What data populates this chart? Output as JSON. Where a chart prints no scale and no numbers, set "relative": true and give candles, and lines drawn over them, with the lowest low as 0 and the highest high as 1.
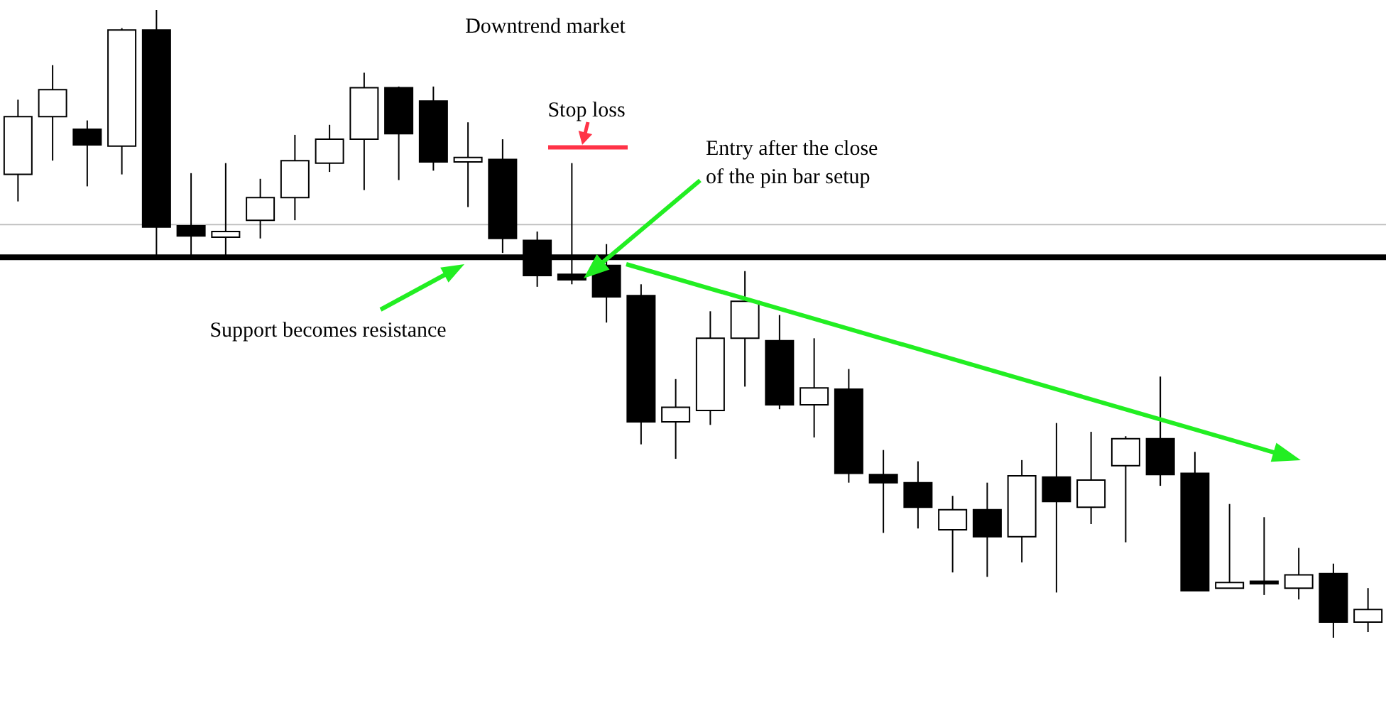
{
  "chart_data": {
    "type": "candlestick",
    "title": "Downtrend market",
    "relative": true,
    "categories": [
      null,
      null,
      null,
      null,
      null,
      null,
      null,
      null,
      null,
      null,
      null,
      null,
      null,
      null,
      null,
      null,
      null,
      null,
      null,
      null,
      null,
      null,
      null,
      null,
      null,
      null,
      null,
      null,
      null,
      null,
      null,
      null,
      null,
      null,
      null,
      null,
      null,
      null,
      null,
      null
    ],
    "ohlc": [
      [
        0.738,
        0.857,
        0.695,
        0.83
      ],
      [
        0.83,
        0.912,
        0.76,
        0.873
      ],
      [
        0.81,
        0.824,
        0.719,
        0.785
      ],
      [
        0.783,
        0.971,
        0.738,
        0.968
      ],
      [
        0.968,
        1.0,
        0.609,
        0.654
      ],
      [
        0.656,
        0.74,
        0.609,
        0.64
      ],
      [
        0.638,
        0.756,
        0.609,
        0.647
      ],
      [
        0.665,
        0.731,
        0.636,
        0.701
      ],
      [
        0.701,
        0.801,
        0.665,
        0.76
      ],
      [
        0.756,
        0.817,
        0.742,
        0.794
      ],
      [
        0.794,
        0.9,
        0.713,
        0.876
      ],
      [
        0.876,
        0.878,
        0.729,
        0.803
      ],
      [
        0.855,
        0.878,
        0.744,
        0.758
      ],
      [
        0.758,
        0.821,
        0.686,
        0.765
      ],
      [
        0.762,
        0.794,
        0.613,
        0.636
      ],
      [
        0.633,
        0.647,
        0.559,
        0.577
      ],
      [
        0.579,
        0.756,
        0.563,
        0.57
      ],
      [
        0.593,
        0.627,
        0.502,
        0.543
      ],
      [
        0.545,
        0.563,
        0.308,
        0.344
      ],
      [
        0.344,
        0.412,
        0.285,
        0.367
      ],
      [
        0.362,
        0.52,
        0.339,
        0.477
      ],
      [
        0.477,
        0.584,
        0.4,
        0.536
      ],
      [
        0.473,
        0.514,
        0.364,
        0.371
      ],
      [
        0.371,
        0.477,
        0.319,
        0.398
      ],
      [
        0.396,
        0.428,
        0.247,
        0.262
      ],
      [
        0.26,
        0.299,
        0.167,
        0.247
      ],
      [
        0.247,
        0.281,
        0.174,
        0.208
      ],
      [
        0.172,
        0.226,
        0.104,
        0.204
      ],
      [
        0.204,
        0.247,
        0.097,
        0.161
      ],
      [
        0.161,
        0.283,
        0.12,
        0.258
      ],
      [
        0.256,
        0.342,
        0.072,
        0.217
      ],
      [
        0.208,
        0.328,
        0.181,
        0.251
      ],
      [
        0.274,
        0.321,
        0.152,
        0.317
      ],
      [
        0.317,
        0.416,
        0.242,
        0.26
      ],
      [
        0.262,
        0.296,
        0.075,
        0.075
      ],
      [
        0.079,
        0.213,
        0.079,
        0.088
      ],
      [
        0.09,
        0.192,
        0.068,
        0.086
      ],
      [
        0.079,
        0.143,
        0.061,
        0.1
      ],
      [
        0.102,
        0.118,
        0.0,
        0.025
      ],
      [
        0.025,
        0.079,
        0.009,
        0.045
      ]
    ],
    "colors": [
      "#ffffff",
      "#ffffff",
      "#000000",
      "#ffffff",
      "#000000",
      "#000000",
      "#ffffff",
      "#ffffff",
      "#ffffff",
      "#ffffff",
      "#ffffff",
      "#000000",
      "#000000",
      "#ffffff",
      "#000000",
      "#000000",
      "#000000",
      "#000000",
      "#000000",
      "#ffffff",
      "#ffffff",
      "#ffffff",
      "#000000",
      "#ffffff",
      "#000000",
      "#000000",
      "#000000",
      "#ffffff",
      "#000000",
      "#ffffff",
      "#000000",
      "#ffffff",
      "#ffffff",
      "#000000",
      "#000000",
      "#ffffff",
      "#000000",
      "#ffffff",
      "#000000",
      "#ffffff"
    ],
    "ref_lines": [
      {
        "axis": "y",
        "value": 0.606,
        "color": "#000000"
      },
      {
        "axis": "y",
        "value": 0.658,
        "color": "#c0c0c0"
      },
      {
        "axis": "y",
        "value": 0.781,
        "color": "#ff3347",
        "label": "Stop loss"
      }
    ],
    "annotations": [
      "Entry after the close of the pin bar setup",
      "Support becomes resistance"
    ]
  }
}
